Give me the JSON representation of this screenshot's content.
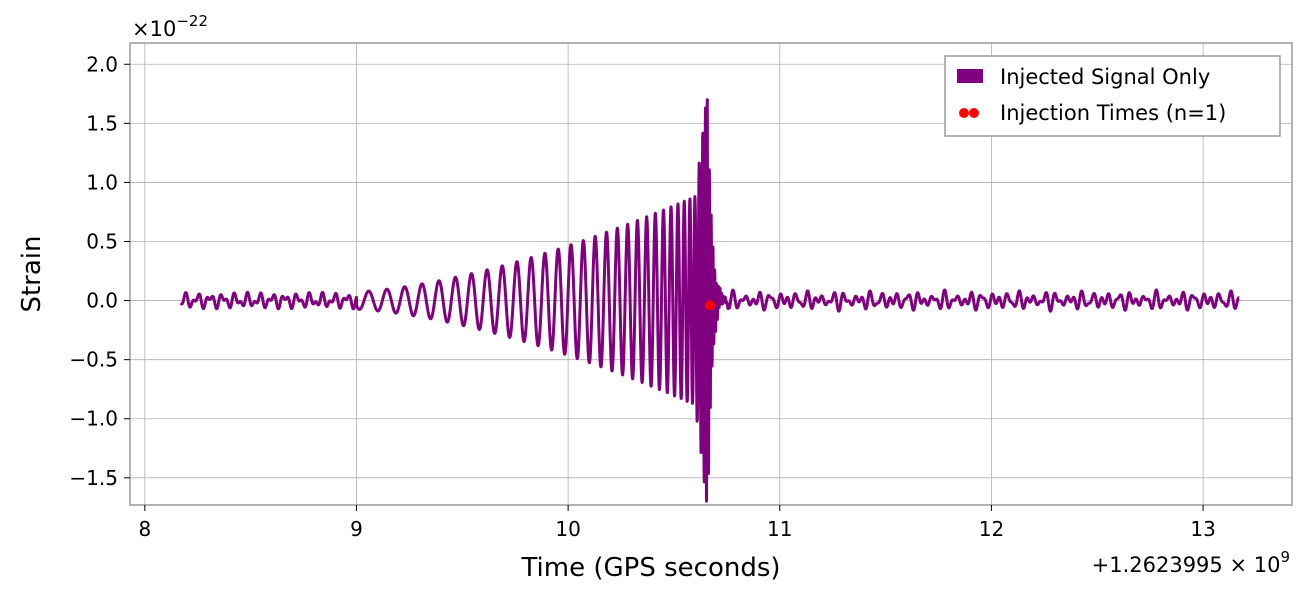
{
  "chart_data": {
    "type": "line",
    "xlabel": "Time (GPS seconds)",
    "ylabel": "Strain",
    "x_offset_label": "+1.2623995 × 10",
    "x_offset_exp": "9",
    "y_scale_label": "×10",
    "y_scale_exp": "−22",
    "xlim": [
      7.93,
      13.42
    ],
    "ylim": [
      -1.73,
      2.18
    ],
    "xticks": [
      8,
      9,
      10,
      11,
      12,
      13
    ],
    "yticks": [
      2.0,
      1.5,
      1.0,
      0.5,
      0.0,
      -0.5,
      -1.0,
      -1.5
    ],
    "ytick_labels": [
      "2.0",
      "1.5",
      "1.0",
      "0.5",
      "0.0",
      "−0.5",
      "−1.0",
      "−1.5"
    ],
    "grid": true,
    "legend_position": "top-right",
    "series": [
      {
        "name": "Injected Signal Only",
        "kind": "line",
        "color": "#800080",
        "x_start": 8.17,
        "x_end": 13.17,
        "merger_time": 10.66,
        "peak_positive": 2.0,
        "peak_negative": -1.55,
        "points": [
          [
            8.17,
            0.04
          ],
          [
            9.0,
            0.12
          ],
          [
            9.2,
            0.27
          ],
          [
            9.3,
            0.3
          ],
          [
            9.42,
            0.4
          ],
          [
            9.52,
            0.47
          ],
          [
            9.62,
            0.53
          ],
          [
            9.73,
            0.62
          ],
          [
            9.83,
            0.71
          ],
          [
            9.93,
            0.71
          ],
          [
            10.03,
            0.71
          ],
          [
            10.13,
            0.69
          ],
          [
            10.23,
            0.73
          ],
          [
            10.33,
            0.78
          ],
          [
            10.43,
            0.91
          ],
          [
            10.5,
            0.94
          ],
          [
            10.56,
            1.05
          ],
          [
            10.6,
            1.16
          ],
          [
            10.63,
            1.53
          ],
          [
            10.65,
            2.0
          ],
          [
            10.66,
            -1.55
          ],
          [
            10.68,
            0.9
          ],
          [
            10.72,
            0.05
          ],
          [
            13.17,
            0.06
          ]
        ]
      },
      {
        "name": "Injection Times (n=1)",
        "kind": "scatter",
        "color": "#ff0000",
        "points": [
          [
            10.67,
            -0.04
          ]
        ]
      }
    ]
  }
}
